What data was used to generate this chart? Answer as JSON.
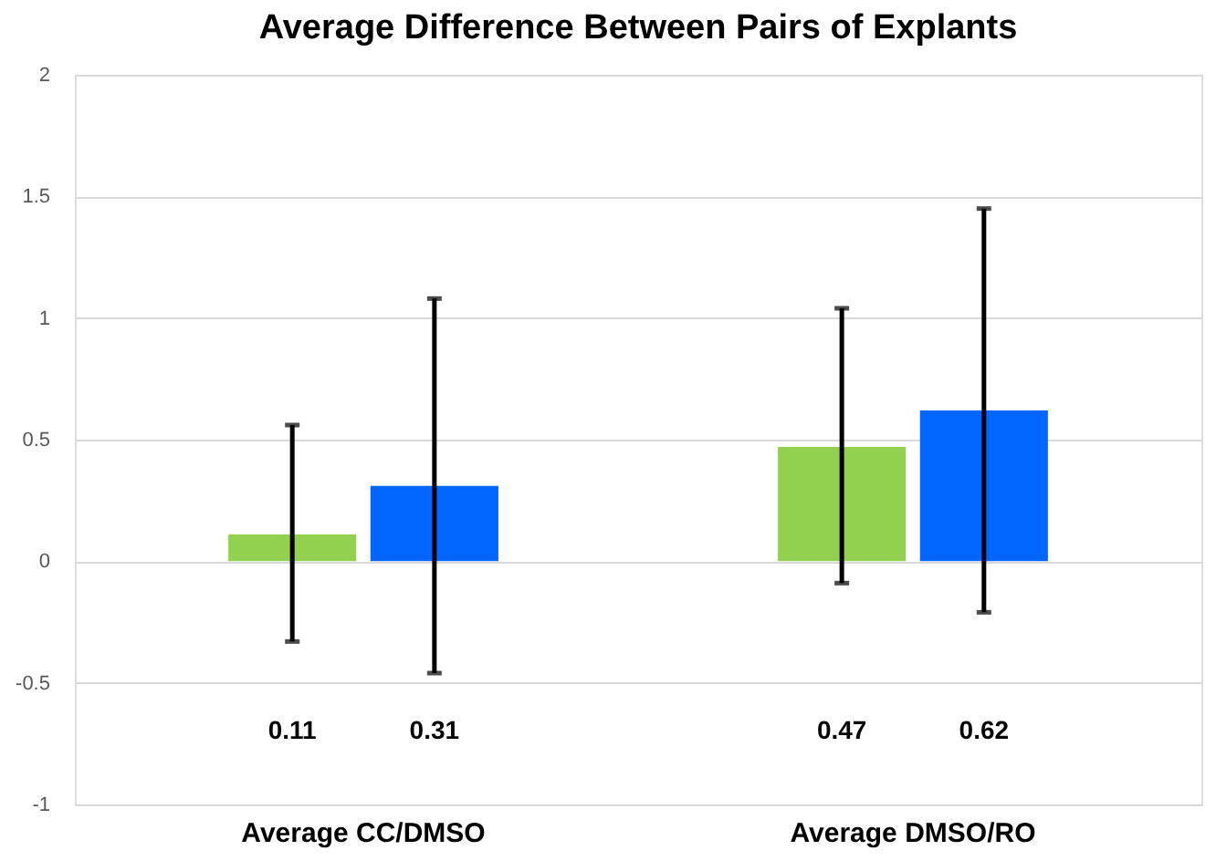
{
  "chart_data": {
    "type": "bar",
    "title": "Average Difference Between Pairs of Explants",
    "categories": [
      "Average CC/DMSO",
      "Average DMSO/RO"
    ],
    "series": [
      {
        "color": "#92d050",
        "values": [
          0.11,
          0.47
        ],
        "errors": [
          [
            -0.33,
            0.56
          ],
          [
            -0.09,
            1.04
          ]
        ]
      },
      {
        "color": "#0066ff",
        "values": [
          0.31,
          0.62
        ],
        "errors": [
          [
            -0.46,
            1.08
          ],
          [
            -0.21,
            1.45
          ]
        ]
      }
    ],
    "ylim": [
      -1,
      2
    ],
    "yticks": [
      -1,
      -0.5,
      0,
      0.5,
      1,
      1.5,
      2
    ],
    "grid": "y",
    "legend": false,
    "annotations": [
      "0.11",
      "0.31",
      "0.47",
      "0.62"
    ]
  }
}
